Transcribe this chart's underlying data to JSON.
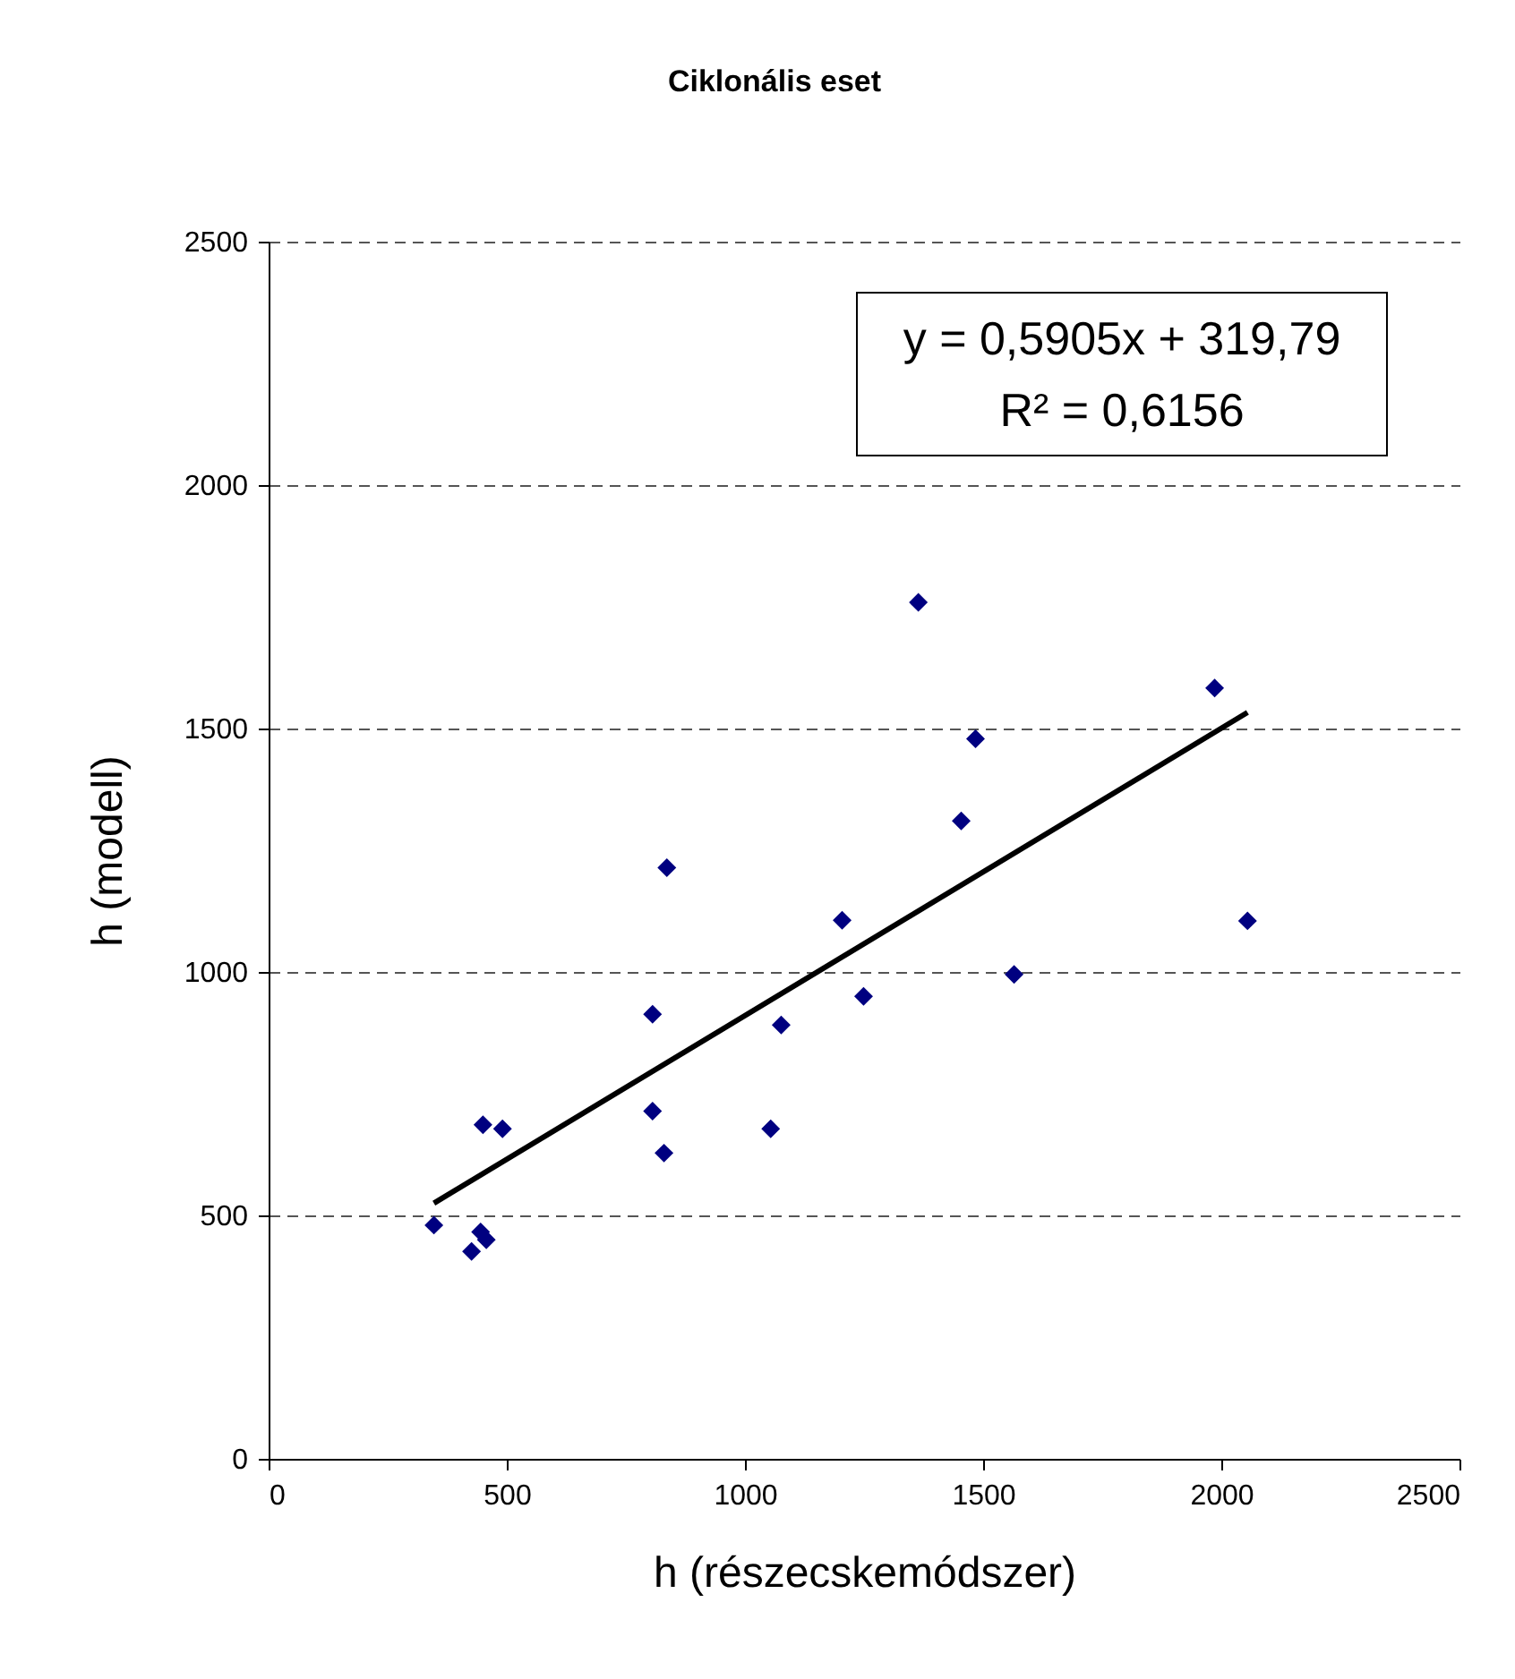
{
  "chart_data": {
    "type": "scatter",
    "title": "Ciklonális eset",
    "xlabel": "h (részecskemódszer)",
    "ylabel": "h (modell)",
    "xlim": [
      0,
      2500
    ],
    "xticks": [
      0,
      500,
      1000,
      1500,
      2000,
      2500
    ],
    "ylim": [
      0,
      2500
    ],
    "yticks": [
      0,
      500,
      1000,
      1500,
      2000,
      2500
    ],
    "grid": "y",
    "series": [
      {
        "color": "#000080",
        "marker": "diamond",
        "x": [
          347,
          445,
          457,
          426,
          450,
          491,
          806,
          830,
          806,
          836,
          1054,
          1076,
          1204,
          1249,
          1364,
          1454,
          1484,
          1565,
          1986,
          2055
        ],
        "values": [
          480,
          466,
          450,
          426,
          686,
          678,
          714,
          628,
          913,
          1214,
          678,
          891,
          1106,
          950,
          1759,
          1310,
          1479,
          995,
          1583,
          1105
        ]
      },
      {
        "type": "line",
        "color": "#000000",
        "x": [
          347,
          2055
        ],
        "values": [
          525,
          1533
        ]
      }
    ],
    "annotations": [
      "y = 0,5905x + 319,79",
      "R² = 0,6156"
    ]
  }
}
